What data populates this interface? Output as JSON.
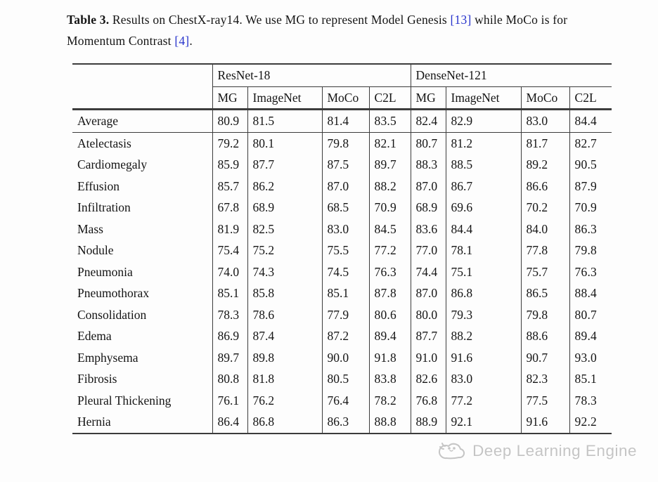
{
  "colors": {
    "text": "#141414",
    "rule": "#3c3c3c",
    "citation": "#2733cc",
    "watermark": "#c5c5c5",
    "background": "#fdfdfd"
  },
  "caption": {
    "label": "Table 3.",
    "text1": " Results on ChestX-ray14. We use MG to represent Model Genesis ",
    "cite1": "[13]",
    "text2": " while MoCo is for Momentum Contrast ",
    "cite2": "[4]",
    "text3": "."
  },
  "table": {
    "group_headers": [
      {
        "label": "ResNet-18",
        "span": 4
      },
      {
        "label": "DenseNet-121",
        "span": 4
      }
    ],
    "columns": [
      "MG",
      "ImageNet",
      "MoCo",
      "C2L",
      "MG",
      "ImageNet",
      "MoCo",
      "C2L"
    ],
    "bold_value_indices": [
      3,
      7
    ],
    "rows": [
      {
        "label": "Average",
        "values": [
          "80.9",
          "81.5",
          "81.4",
          "83.5",
          "82.4",
          "82.9",
          "83.0",
          "84.4"
        ],
        "separator_below": true
      },
      {
        "label": "Atelectasis",
        "values": [
          "79.2",
          "80.1",
          "79.8",
          "82.1",
          "80.7",
          "81.2",
          "81.7",
          "82.7"
        ]
      },
      {
        "label": "Cardiomegaly",
        "values": [
          "85.9",
          "87.7",
          "87.5",
          "89.7",
          "88.3",
          "88.5",
          "89.2",
          "90.5"
        ]
      },
      {
        "label": "Effusion",
        "values": [
          "85.7",
          "86.2",
          "87.0",
          "88.2",
          "87.0",
          "86.7",
          "86.6",
          "87.9"
        ]
      },
      {
        "label": "Infiltration",
        "values": [
          "67.8",
          "68.9",
          "68.5",
          "70.9",
          "68.9",
          "69.6",
          "70.2",
          "70.9"
        ]
      },
      {
        "label": "Mass",
        "values": [
          "81.9",
          "82.5",
          "83.0",
          "84.5",
          "83.6",
          "84.4",
          "84.0",
          "86.3"
        ]
      },
      {
        "label": "Nodule",
        "values": [
          "75.4",
          "75.2",
          "75.5",
          "77.2",
          "77.0",
          "78.1",
          "77.8",
          "79.8"
        ]
      },
      {
        "label": "Pneumonia",
        "values": [
          "74.0",
          "74.3",
          "74.5",
          "76.3",
          "74.4",
          "75.1",
          "75.7",
          "76.3"
        ]
      },
      {
        "label": "Pneumothorax",
        "values": [
          "85.1",
          "85.8",
          "85.1",
          "87.8",
          "87.0",
          "86.8",
          "86.5",
          "88.4"
        ]
      },
      {
        "label": "Consolidation",
        "values": [
          "78.3",
          "78.6",
          "77.9",
          "80.6",
          "80.0",
          "79.3",
          "79.8",
          "80.7"
        ]
      },
      {
        "label": "Edema",
        "values": [
          "86.9",
          "87.4",
          "87.2",
          "89.4",
          "87.7",
          "88.2",
          "88.6",
          "89.4"
        ]
      },
      {
        "label": "Emphysema",
        "values": [
          "89.7",
          "89.8",
          "90.0",
          "91.8",
          "91.0",
          "91.6",
          "90.7",
          "93.0"
        ]
      },
      {
        "label": "Fibrosis",
        "values": [
          "80.8",
          "81.8",
          "80.5",
          "83.8",
          "82.6",
          "83.0",
          "82.3",
          "85.1"
        ]
      },
      {
        "label": "Pleural Thickening",
        "values": [
          "76.1",
          "76.2",
          "76.4",
          "78.2",
          "76.8",
          "77.2",
          "77.5",
          "78.3"
        ]
      },
      {
        "label": "Hernia",
        "values": [
          "86.4",
          "86.8",
          "86.3",
          "88.8",
          "88.9",
          "92.1",
          "91.6",
          "92.2"
        ]
      }
    ]
  },
  "watermark": {
    "label": "Deep Learning Engine",
    "icon": "cloud-logo-icon"
  }
}
